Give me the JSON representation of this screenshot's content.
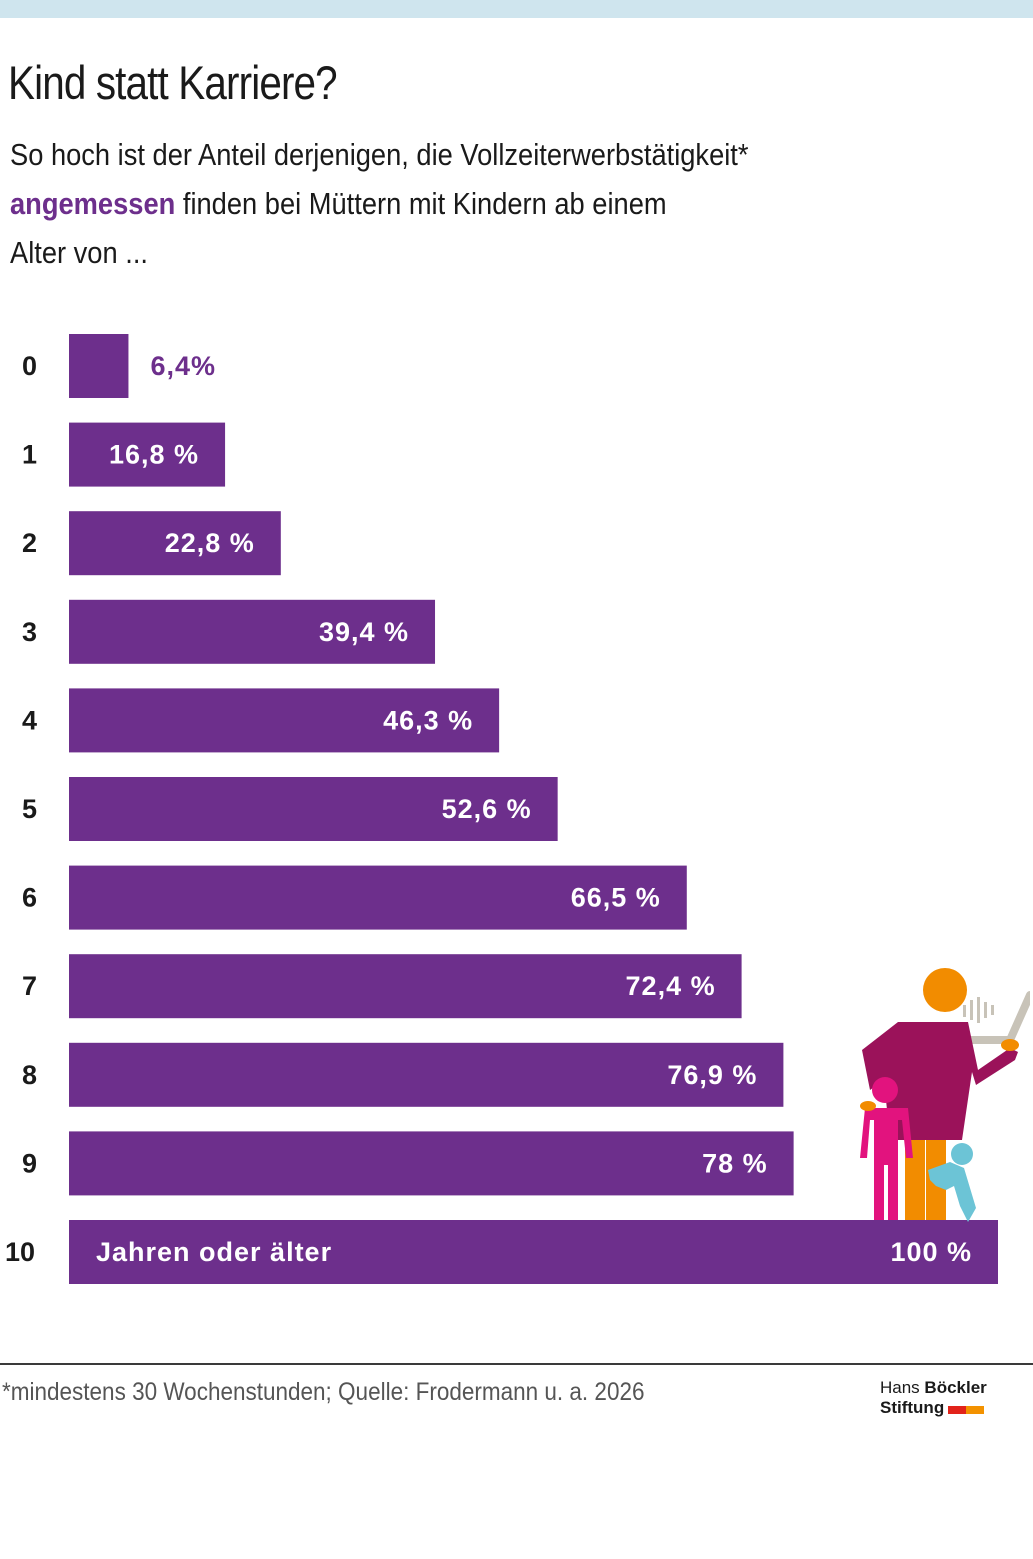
{
  "header": {
    "title": "Kind statt Karriere?",
    "subtitle_lines": [
      {
        "pre": "So hoch ist der Anteil derjenigen, die Vollzeiterwerbstätigkeit*",
        "highlight": "",
        "post": ""
      },
      {
        "pre": "",
        "highlight": "angemessen",
        "post": " finden bei Müttern mit Kindern ab einem"
      },
      {
        "pre": "Alter von ...",
        "highlight": "",
        "post": ""
      }
    ]
  },
  "colors": {
    "bar": "#6d2f8c",
    "highlight": "#6d2f8c",
    "top_band": "#cfe5ee",
    "logo_red": "#e2231a",
    "logo_orange": "#f39200"
  },
  "chart_data": {
    "type": "bar",
    "orientation": "horizontal",
    "title": "Kind statt Karriere?",
    "xlabel": "",
    "ylabel": "Alter von ...",
    "xlim": [
      0,
      100
    ],
    "grid": false,
    "categories": [
      "0",
      "1",
      "2",
      "3",
      "4",
      "5",
      "6",
      "7",
      "8",
      "9",
      "10"
    ],
    "values": [
      6.4,
      16.8,
      22.8,
      39.4,
      46.3,
      52.6,
      66.5,
      72.4,
      76.9,
      78,
      100
    ],
    "value_labels": [
      "6,4%",
      "16,8 %",
      "22,8 %",
      "39,4 %",
      "46,3 %",
      "52,6 %",
      "66,5 %",
      "72,4 %",
      "76,9 %",
      "78 %",
      "100 %"
    ],
    "bar_inline_labels": [
      "",
      "",
      "",
      "",
      "",
      "",
      "",
      "",
      "",
      "",
      "Jahren oder älter"
    ]
  },
  "footer": {
    "note": "*mindestens 30 Wochenstunden; Quelle: Frodermann u. a. 2026",
    "logo": {
      "line1_regular": "Hans ",
      "line1_bold": "Böckler",
      "line2": "Stiftung"
    }
  },
  "illustration": {
    "icon": "mother-with-children-laptop-icon"
  }
}
